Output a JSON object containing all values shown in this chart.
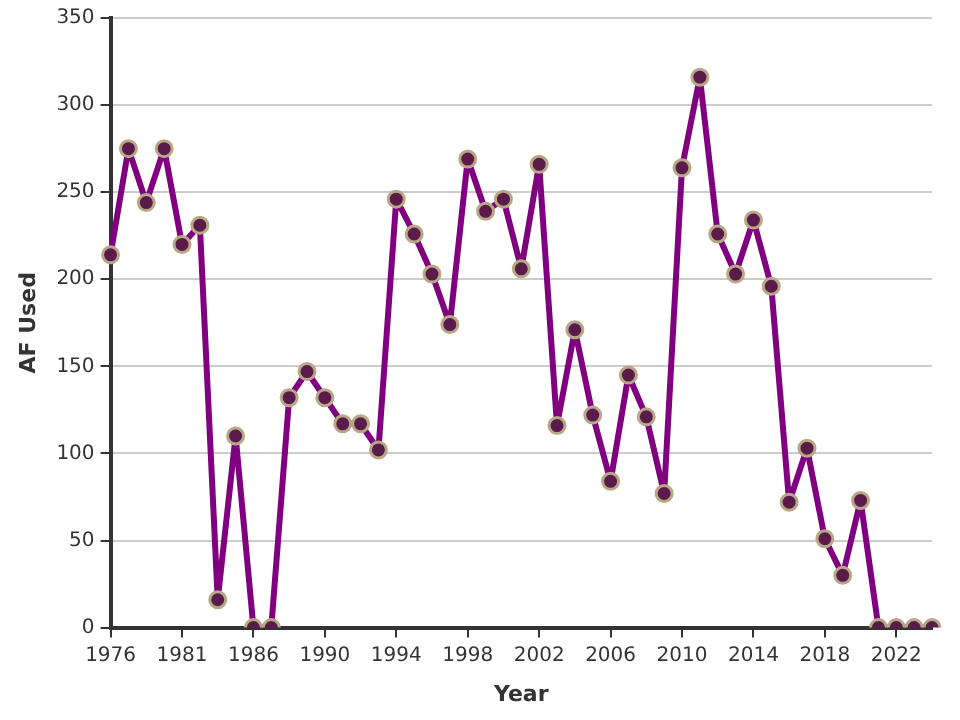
{
  "chart_data": {
    "type": "line",
    "xlabel": "Year",
    "ylabel": "AF Used",
    "categories": [
      "1976",
      null,
      null,
      null,
      "1981",
      null,
      null,
      null,
      "1986",
      null,
      null,
      null,
      "1990",
      null,
      null,
      null,
      "1994",
      null,
      null,
      null,
      "1998",
      null,
      null,
      null,
      "2002",
      null,
      null,
      null,
      "2006",
      null,
      null,
      null,
      "2010",
      null,
      null,
      null,
      "2014",
      null,
      null,
      null,
      "2018",
      null,
      null,
      null,
      "2022",
      null,
      null
    ],
    "series": [
      {
        "color": "#800080",
        "values": [
          214,
          275,
          244,
          275,
          220,
          231,
          16,
          110,
          0,
          0,
          132,
          147,
          132,
          117,
          117,
          102,
          246,
          226,
          203,
          174,
          269,
          239,
          246,
          206,
          266,
          116,
          171,
          122,
          84,
          145,
          121,
          77,
          264,
          316,
          226,
          203,
          234,
          196,
          72,
          103,
          51,
          30,
          73,
          0,
          0,
          0,
          0
        ]
      }
    ],
    "ylim": [
      0,
      350
    ],
    "yticks": [
      0,
      50,
      100,
      150,
      200,
      250,
      300,
      350
    ],
    "grid": "y",
    "marker": "circle",
    "line_style": "solid"
  }
}
